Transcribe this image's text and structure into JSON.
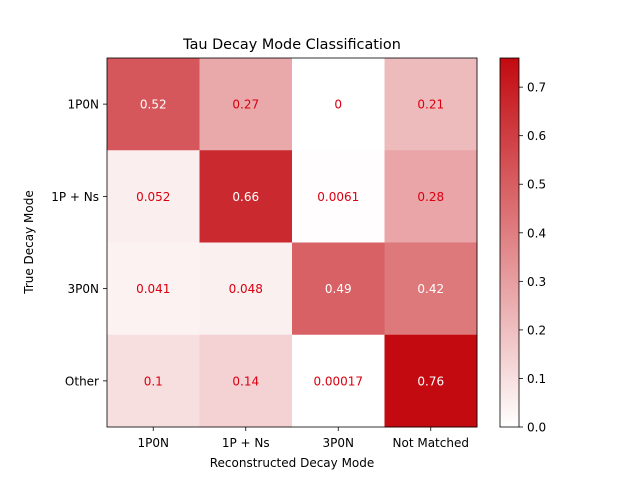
{
  "chart_data": {
    "type": "heatmap",
    "title": "Tau Decay Mode Classification",
    "xlabel": "Reconstructed Decay Mode",
    "ylabel": "True Decay Mode",
    "x_categories": [
      "1P0N",
      "1P + Ns",
      "3P0N",
      "Not Matched"
    ],
    "y_categories": [
      "1P0N",
      "1P + Ns",
      "3P0N",
      "Other"
    ],
    "values": [
      [
        0.52,
        0.27,
        0,
        0.21
      ],
      [
        0.052,
        0.66,
        0.0061,
        0.28
      ],
      [
        0.041,
        0.048,
        0.49,
        0.42
      ],
      [
        0.1,
        0.14,
        0.00017,
        0.76
      ]
    ],
    "cell_labels": [
      [
        "0.52",
        "0.27",
        "0",
        "0.21"
      ],
      [
        "0.052",
        "0.66",
        "0.0061",
        "0.28"
      ],
      [
        "0.041",
        "0.048",
        "0.49",
        "0.42"
      ],
      [
        "0.1",
        "0.14",
        "0.00017",
        "0.76"
      ]
    ],
    "colorbar": {
      "vmin": 0,
      "vmax": 0.76,
      "ticks": [
        0.0,
        0.1,
        0.2,
        0.3,
        0.4,
        0.5,
        0.6,
        0.7
      ],
      "tick_labels": [
        "0.0",
        "0.1",
        "0.2",
        "0.3",
        "0.4",
        "0.5",
        "0.6",
        "0.7"
      ],
      "color_low": "#ffffff",
      "color_high": "#c20a10"
    },
    "label_colors": {
      "on_light": "#d9000f",
      "on_dark": "#ffffff"
    },
    "grid": false
  }
}
